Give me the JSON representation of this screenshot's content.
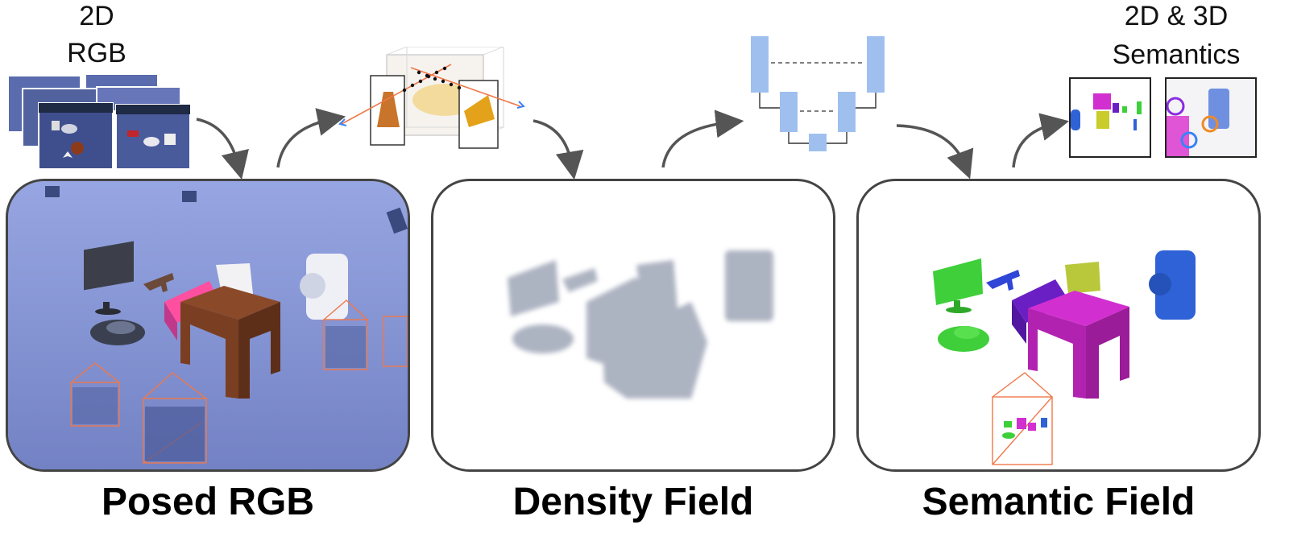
{
  "labels": {
    "input_2d": "2D",
    "input_rgb": "RGB",
    "output_line1": "2D & 3D",
    "output_line2": "Semantics"
  },
  "panels": {
    "posed_rgb": "Posed RGB",
    "density_field": "Density Field",
    "semantic_field": "Semantic Field"
  },
  "colors": {
    "panel_border": "#444444",
    "arrow": "#555555",
    "unet_blue": "#9fc0ef",
    "camera_frustum": "#f0784a",
    "rgb_scene_bg": "#8a99d6",
    "density_gray": "#6b7690",
    "sem_green": "#3fcf3a",
    "sem_magenta": "#d22fd0",
    "sem_purple": "#6a1fc4",
    "sem_blue": "#2f62d6",
    "sem_yellow": "#b9c83a",
    "ring_purple": "#8a2be2",
    "ring_orange": "#f08a24",
    "ring_blue": "#3b82f6"
  },
  "icons": [
    "arrow-curved-icon",
    "camera-frustum-icon",
    "unet-icon",
    "ray-cube-icon"
  ]
}
